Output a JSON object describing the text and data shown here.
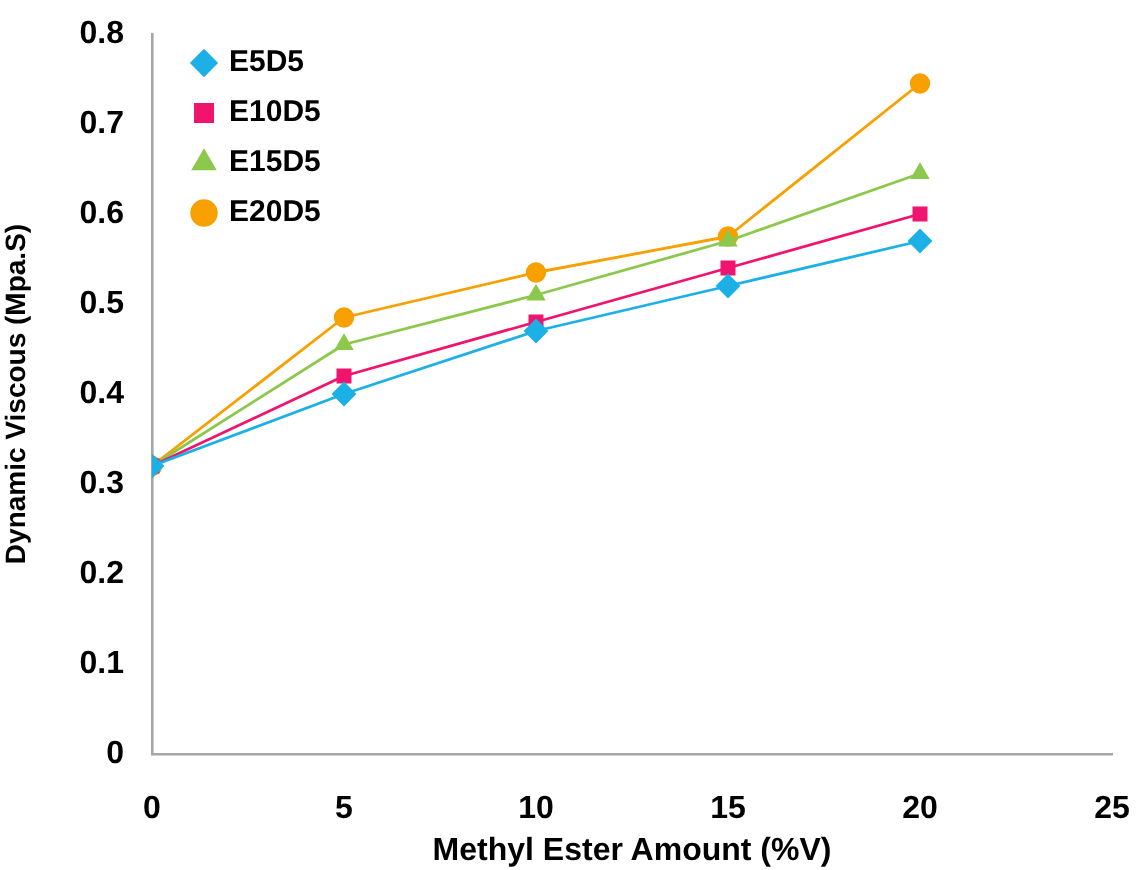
{
  "chart_data": {
    "type": "line",
    "xlabel": "Methyl Ester Amount (%V)",
    "ylabel": "Dynamic Viscous (Mpa.S)",
    "x": [
      0,
      5,
      10,
      15,
      20
    ],
    "series": [
      {
        "name": "E5D5",
        "color": "#1cb0e6",
        "marker": "diamond",
        "values": [
          0.32,
          0.4,
          0.47,
          0.52,
          0.57
        ]
      },
      {
        "name": "E10D5",
        "color": "#f0146e",
        "marker": "square",
        "values": [
          0.32,
          0.42,
          0.48,
          0.54,
          0.6
        ]
      },
      {
        "name": "E15D5",
        "color": "#8cc84b",
        "marker": "triangle",
        "values": [
          0.32,
          0.455,
          0.51,
          0.57,
          0.645
        ]
      },
      {
        "name": "E20D5",
        "color": "#f7a000",
        "marker": "circle",
        "values": [
          0.32,
          0.485,
          0.535,
          0.575,
          0.745
        ]
      }
    ],
    "xlim": [
      0,
      25
    ],
    "xticks": [
      0,
      5,
      10,
      15,
      20,
      25
    ],
    "ylim": [
      0,
      0.8
    ],
    "yticks": [
      0,
      0.1,
      0.2,
      0.3,
      0.4,
      0.5,
      0.6,
      0.7,
      0.8
    ],
    "grid": false,
    "legend": "top left",
    "line_style": "solid"
  }
}
